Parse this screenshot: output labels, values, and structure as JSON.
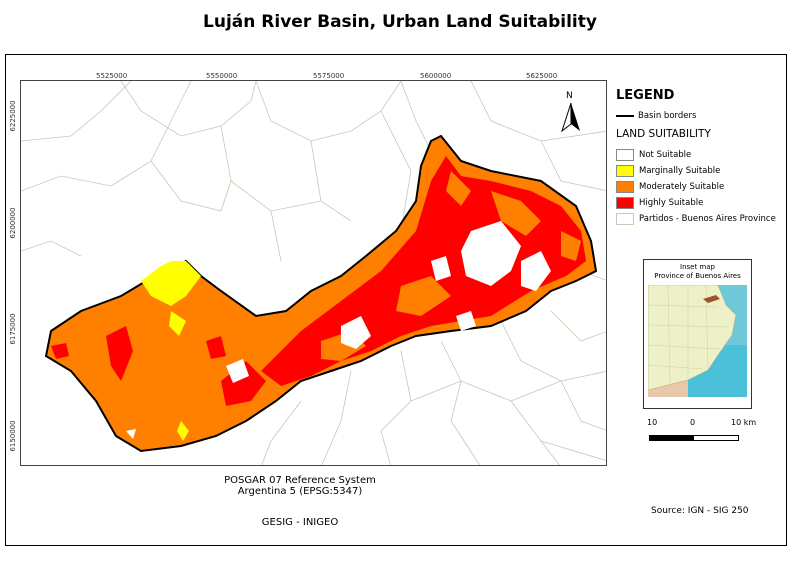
{
  "title": "Luján River Basin, Urban Land Suitability",
  "map": {
    "x_ticks": [
      "5525000",
      "5550000",
      "5575000",
      "5600000",
      "5625000"
    ],
    "y_ticks": [
      "6225000",
      "6200000",
      "6175000",
      "6150000"
    ],
    "north_arrow_label": "N"
  },
  "legend": {
    "title": "LEGEND",
    "basin_borders_label": "Basin borders",
    "suitability_title": "LAND SUITABILITY",
    "items": [
      {
        "label": "Not Suitable",
        "color": "#ffffff"
      },
      {
        "label": "Marginally Suitable",
        "color": "#ffff00"
      },
      {
        "label": "Moderately Suitable",
        "color": "#ff8000"
      },
      {
        "label": "Highly Suitable",
        "color": "#ff0000"
      },
      {
        "label": "Partidos - Buenos Aires Province",
        "color": "#ffffff"
      }
    ]
  },
  "inset": {
    "title_line1": "Inset map",
    "title_line2": "Province of Buenos Aires"
  },
  "scale": {
    "labels": [
      "10",
      "0",
      "10 km"
    ]
  },
  "reference": {
    "line1": "POSGAR 07 Reference System",
    "line2": "Argentina 5 (EPSG:5347)",
    "credit": "GESIG - INIGEO"
  },
  "source": "Source: IGN - SIG 250",
  "colors": {
    "moderate": "#ff8000",
    "high": "#ff0000",
    "marginal": "#ffff00",
    "partido_lines": "#c8c8b4"
  }
}
